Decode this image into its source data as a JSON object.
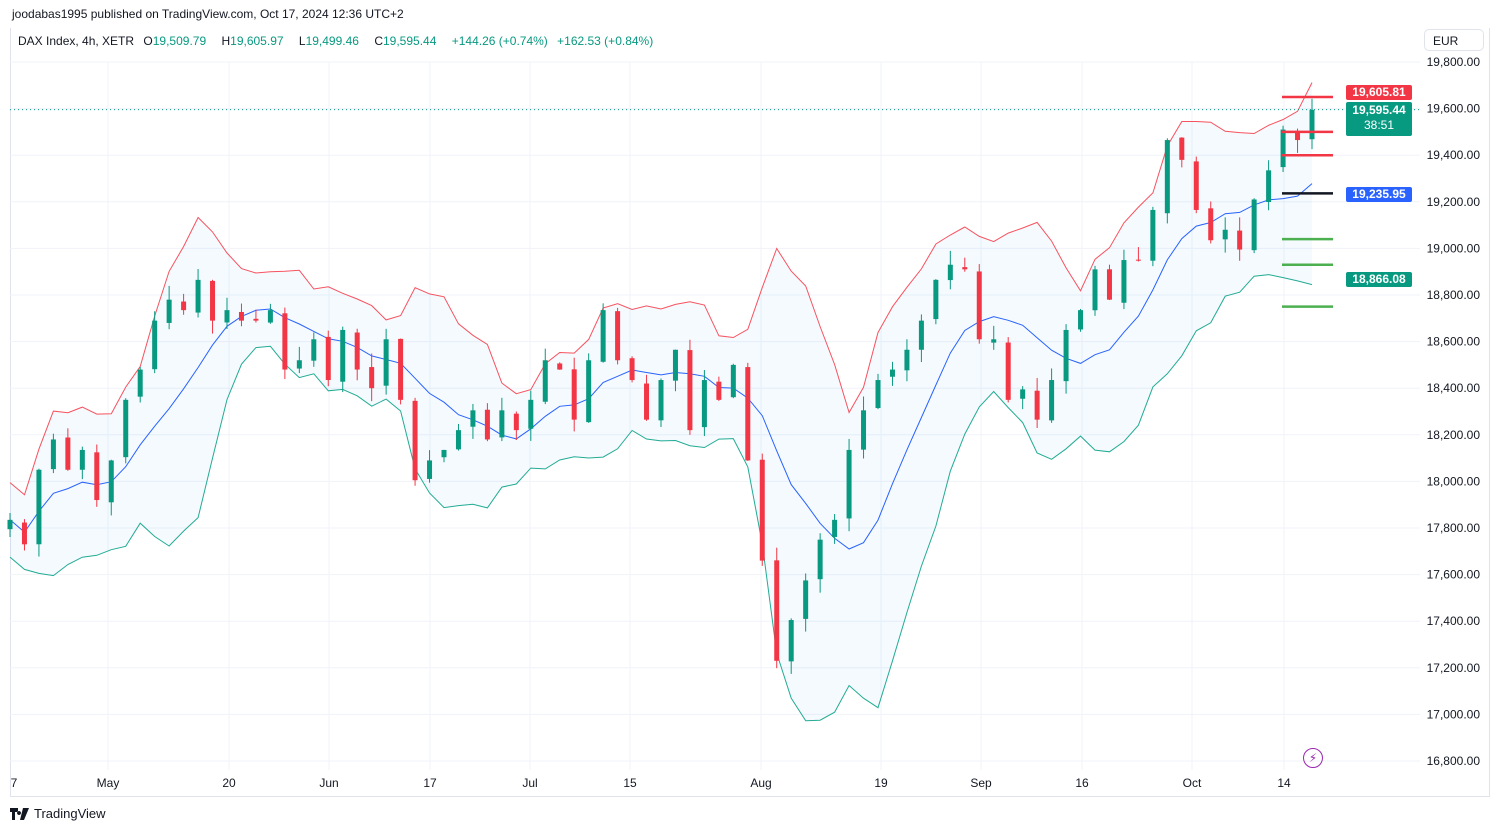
{
  "publisher_line": "joodabas1995 published on TradingView.com, Oct 17, 2024 12:36 UTC+2",
  "legend": {
    "symbol": "DAX Index, 4h, XETR",
    "open_label": "O",
    "open": "19,509.79",
    "high_label": "H",
    "high": "19,605.97",
    "low_label": "L",
    "low": "19,499.46",
    "close_label": "C",
    "close": "19,595.44",
    "change": "+144.26 (+0.74%)",
    "change2": "+162.53 (+0.84%)"
  },
  "currency": "EUR",
  "price_tags": {
    "red_level": "19,605.81",
    "last_price": "19,595.44",
    "countdown": "38:51",
    "middle_band": "19,235.95",
    "lower_band": "18,866.08"
  },
  "brand": "TradingView",
  "colors": {
    "up": "#089981",
    "down": "#f23645",
    "upper_band": "#f7525f",
    "lower_band": "#22ab94",
    "basis": "#2962ff",
    "fill": "#2196f3"
  },
  "chart_data": {
    "type": "candlestick",
    "title": "DAX Index, 4h, XETR",
    "ylim": [
      16800,
      19800
    ],
    "y_ticks": [
      "19,800.00",
      "19,600.00",
      "19,400.00",
      "19,200.00",
      "19,000.00",
      "18,800.00",
      "18,600.00",
      "18,400.00",
      "18,200.00",
      "18,000.00",
      "17,800.00",
      "17,600.00",
      "17,400.00",
      "17,200.00",
      "17,000.00",
      "16,800.00"
    ],
    "x_ticks": [
      "7",
      "May",
      "20",
      "Jun",
      "17",
      "Jul",
      "15",
      "Aug",
      "19",
      "Sep",
      "16",
      "Oct",
      "14"
    ],
    "closes": [
      17835,
      17730,
      18050,
      18180,
      18050,
      18135,
      17920,
      18090,
      18350,
      18480,
      18690,
      18780,
      18735,
      18865,
      18690,
      18735,
      18690,
      18690,
      18735,
      18480,
      18520,
      18610,
      18435,
      18650,
      18480,
      18400,
      18610,
      18350,
      18005,
      18090,
      18135,
      18220,
      18305,
      18180,
      18305,
      18220,
      18350,
      18520,
      18480,
      18265,
      18520,
      18735,
      18520,
      18435,
      18265,
      18435,
      18565,
      18220,
      18435,
      18350,
      18500,
      18090,
      17660,
      17230,
      17405,
      17575,
      17750,
      17835,
      18135,
      18305,
      18435,
      18480,
      18565,
      18690,
      18865,
      18930,
      18910,
      18610,
      18610,
      18350,
      18395,
      18265,
      18435,
      18650,
      18735,
      18910,
      18780,
      18950,
      18950,
      19165,
      19465,
      19380,
      19165,
      19035,
      19080,
      18995,
      19210,
      19335,
      19510,
      19465,
      19595
    ],
    "indicator": "Bollinger Bands",
    "horizontal_levels": [
      {
        "price": 19650,
        "color": "#f23645"
      },
      {
        "price": 19500,
        "color": "#f23645"
      },
      {
        "price": 19400,
        "color": "#f23645"
      },
      {
        "price": 19235.95,
        "color": "#131722"
      },
      {
        "price": 19040,
        "color": "#4caf50"
      },
      {
        "price": 18930,
        "color": "#4caf50"
      },
      {
        "price": 18750,
        "color": "#4caf50"
      }
    ],
    "last_price": 19595.44
  }
}
